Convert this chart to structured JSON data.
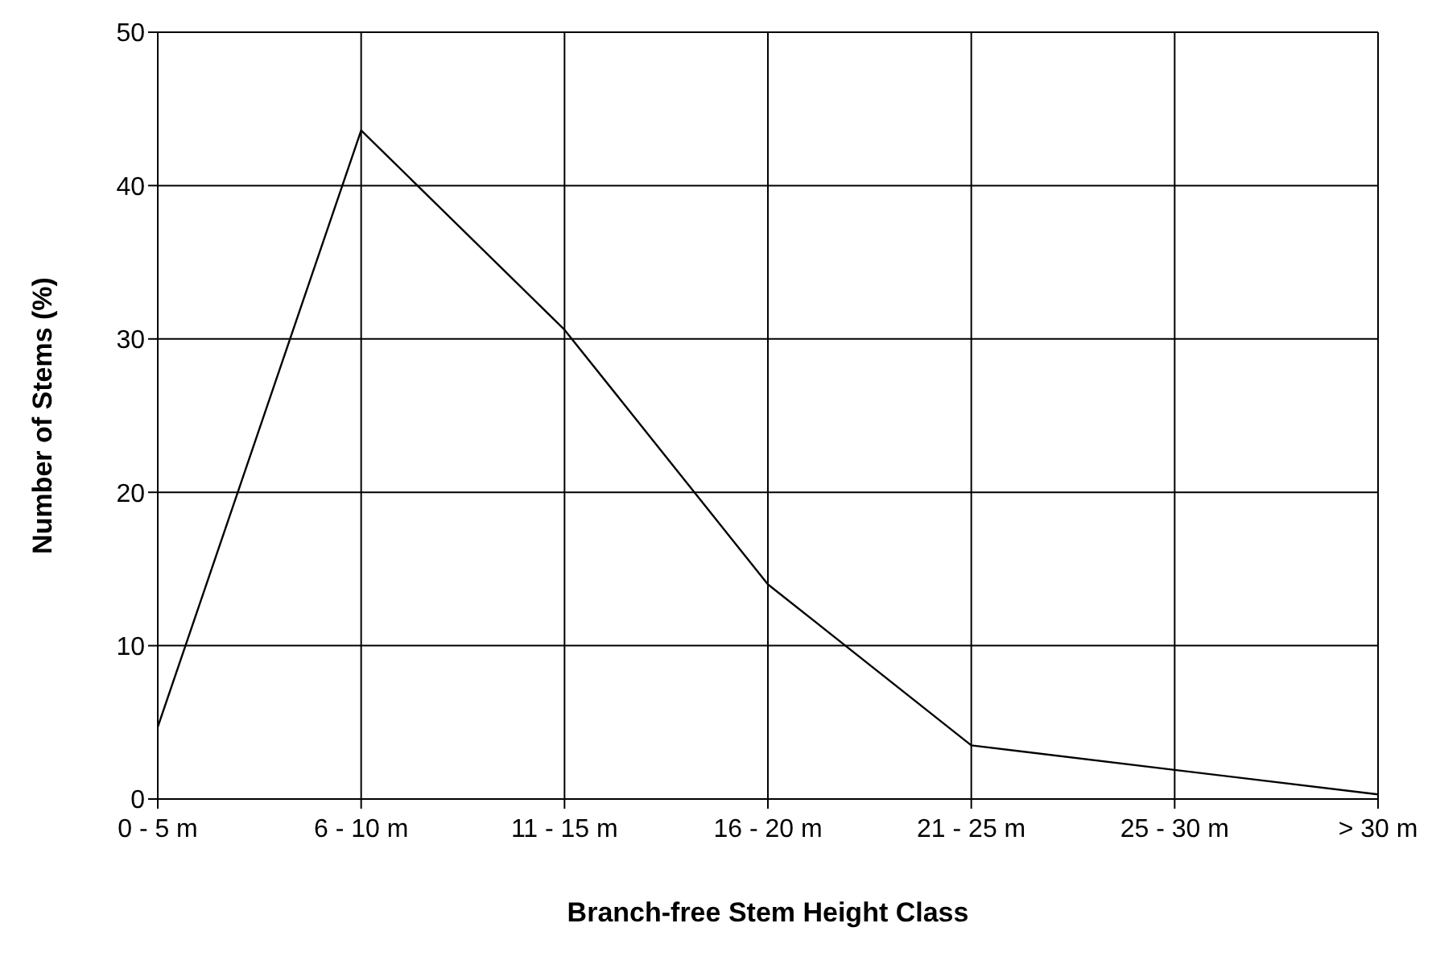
{
  "chart_data": {
    "type": "line",
    "xlabel": "Branch-free Stem Height Class",
    "ylabel": "Number of Stems (%)",
    "categories": [
      "0 - 5 m",
      "6 - 10 m",
      "11 - 15 m",
      "16 - 20 m",
      "21 - 25 m",
      "25 - 30 m",
      "> 30 m"
    ],
    "series": [
      {
        "color": "#000000",
        "values": [
          4.7,
          43.6,
          30.6,
          14,
          3.5,
          1.9,
          0.3
        ]
      }
    ],
    "ylim": [
      0,
      50
    ],
    "yticks": [
      0,
      10,
      20,
      30,
      40,
      50
    ],
    "grid": true,
    "marker": "none",
    "line_style": "solid"
  }
}
